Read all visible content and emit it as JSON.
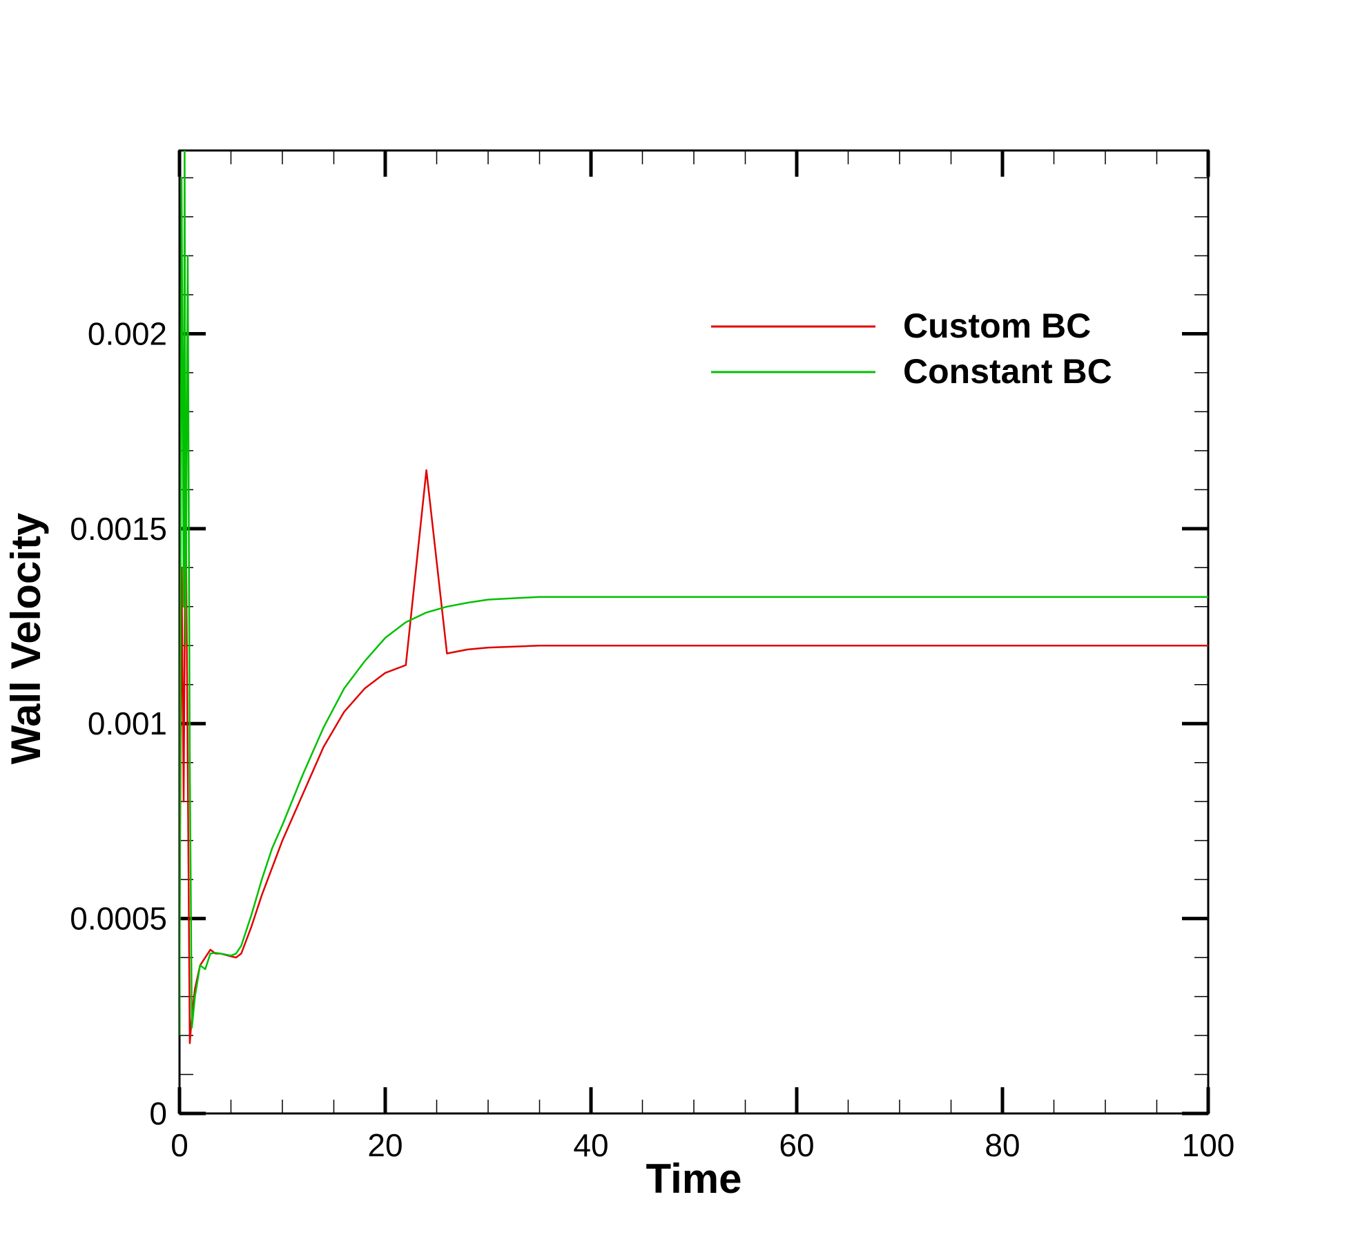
{
  "chart_data": {
    "type": "line",
    "xlabel": "Time",
    "ylabel": "Wall Velocity",
    "xlim": [
      0,
      100
    ],
    "ylim": [
      0,
      0.00247
    ],
    "x_ticks": [
      {
        "value": 0,
        "label": "0"
      },
      {
        "value": 20,
        "label": "20"
      },
      {
        "value": 40,
        "label": "40"
      },
      {
        "value": 60,
        "label": "60"
      },
      {
        "value": 80,
        "label": "80"
      },
      {
        "value": 100,
        "label": "100"
      }
    ],
    "y_ticks": [
      {
        "value": 0,
        "label": "0"
      },
      {
        "value": 0.0005,
        "label": "0.0005"
      },
      {
        "value": 0.001,
        "label": "0.001"
      },
      {
        "value": 0.0015,
        "label": "0.0015"
      },
      {
        "value": 0.002,
        "label": "0.002"
      }
    ],
    "grid": false,
    "legend_position": "top-right",
    "series": [
      {
        "name": "Custom BC",
        "color": "#e00000",
        "x": [
          0,
          0.2,
          0.4,
          0.6,
          0.8,
          1.0,
          1.2,
          1.5,
          2.0,
          2.5,
          3.0,
          3.5,
          4.0,
          5.0,
          5.5,
          6.0,
          7.0,
          8.0,
          9.0,
          10.0,
          12.0,
          14.0,
          16.0,
          18.0,
          20.0,
          22.0,
          24.0,
          26.0,
          28.0,
          30.0,
          35.0,
          40.0,
          50.0,
          60.0,
          70.0,
          80.0,
          90.0,
          100.0
        ],
        "y": [
          0.0004,
          0.0014,
          0.0008,
          0.0016,
          0.0009,
          0.00018,
          0.00025,
          0.00032,
          0.00038,
          0.0004,
          0.00042,
          0.00041,
          0.00041,
          0.000403,
          0.0004,
          0.00041,
          0.00048,
          0.00056,
          0.00063,
          0.0007,
          0.00082,
          0.00094,
          0.00103,
          0.00109,
          0.00113,
          0.00115,
          0.00165,
          0.00118,
          0.00119,
          0.001195,
          0.0012,
          0.0012,
          0.0012,
          0.0012,
          0.0012,
          0.0012,
          0.0012,
          0.0012
        ]
      },
      {
        "name": "Constant BC",
        "color": "#00c000",
        "x": [
          0,
          0.2,
          0.4,
          0.5,
          0.6,
          0.8,
          1.0,
          1.2,
          1.5,
          2.0,
          2.5,
          3.0,
          3.5,
          4.0,
          5.0,
          5.5,
          6.0,
          7.0,
          8.0,
          9.0,
          10.0,
          12.0,
          14.0,
          16.0,
          18.0,
          20.0,
          22.0,
          24.0,
          26.0,
          28.0,
          30.0,
          35.0,
          40.0,
          50.0,
          60.0,
          70.0,
          80.0,
          90.0,
          100.0
        ],
        "y": [
          0.0002,
          0.0024,
          0.0013,
          0.00247,
          0.0012,
          0.0022,
          0.0009,
          0.00022,
          0.0003,
          0.00038,
          0.00037,
          0.00041,
          0.000412,
          0.00041,
          0.000405,
          0.00041,
          0.00043,
          0.00051,
          0.0006,
          0.00068,
          0.00074,
          0.00087,
          0.00099,
          0.00109,
          0.00116,
          0.00122,
          0.00126,
          0.001285,
          0.0013,
          0.00131,
          0.001318,
          0.001325,
          0.001325,
          0.001325,
          0.001325,
          0.001325,
          0.001325,
          0.001325,
          0.001325
        ]
      }
    ]
  }
}
